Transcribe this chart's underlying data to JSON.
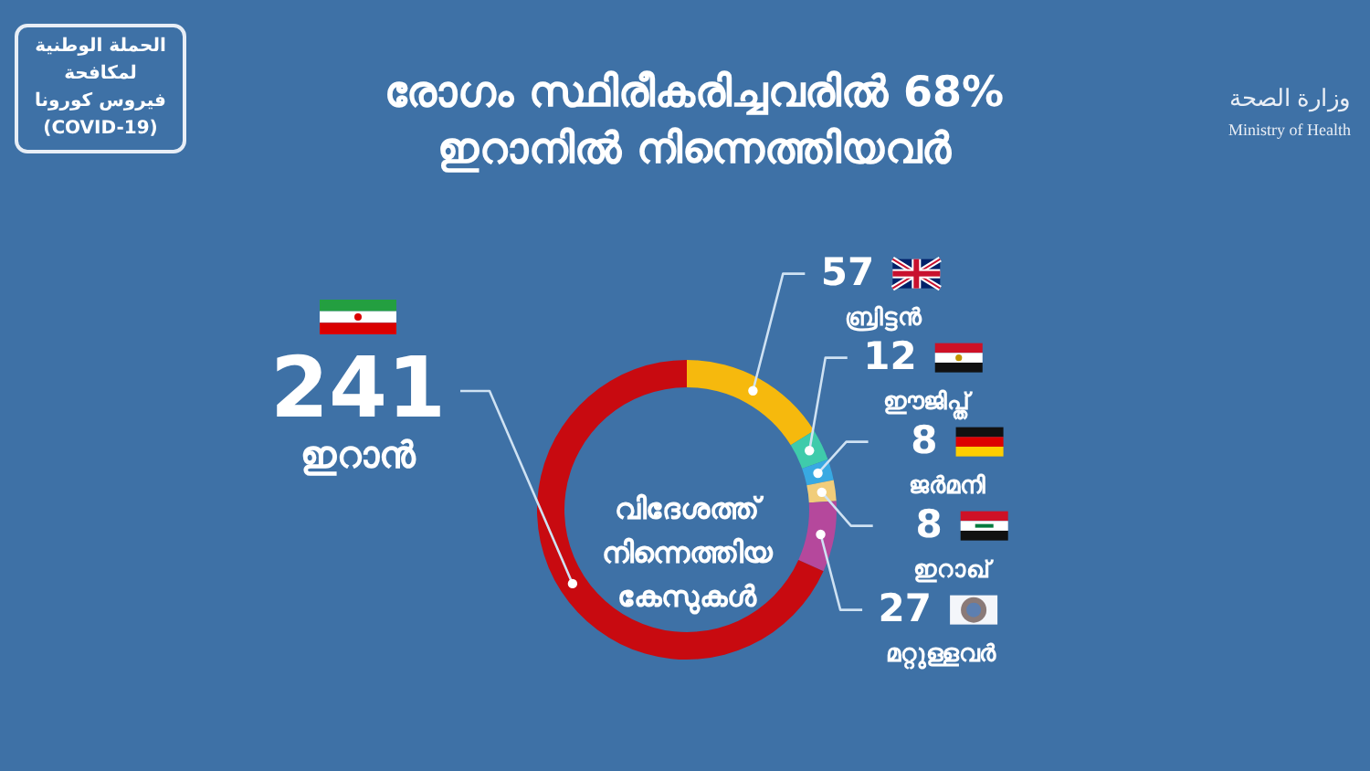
{
  "chart_data": {
    "type": "donut",
    "title": "രോഗം സ്ഥിരീകരിച്ചവരിൽ 68% ഇറാനിൽ നിന്നെത്തിയവർ",
    "categories": [
      "ബ്രിട്ടൻ",
      "ഈജിപ്ത്",
      "ജർമനി",
      "ഇറാഖ്",
      "മറ്റുള്ളവർ",
      "ഇറാൻ"
    ],
    "values": [
      57,
      12,
      8,
      8,
      27,
      241
    ],
    "colors": [
      "#f6b90d",
      "#3fcbab",
      "#38a9e2",
      "#f1cd7a",
      "#b5489c",
      "#c80a10"
    ],
    "data_labels": true,
    "annotations": [
      "വിദേശത്ത് നിന്നെത്തിയ കേസുകൾ",
      "الحملة الوطنية لمكافحة فيروس كورونا (COVID-19)",
      "وزارة الصحة",
      "Ministry of Health"
    ]
  }
}
